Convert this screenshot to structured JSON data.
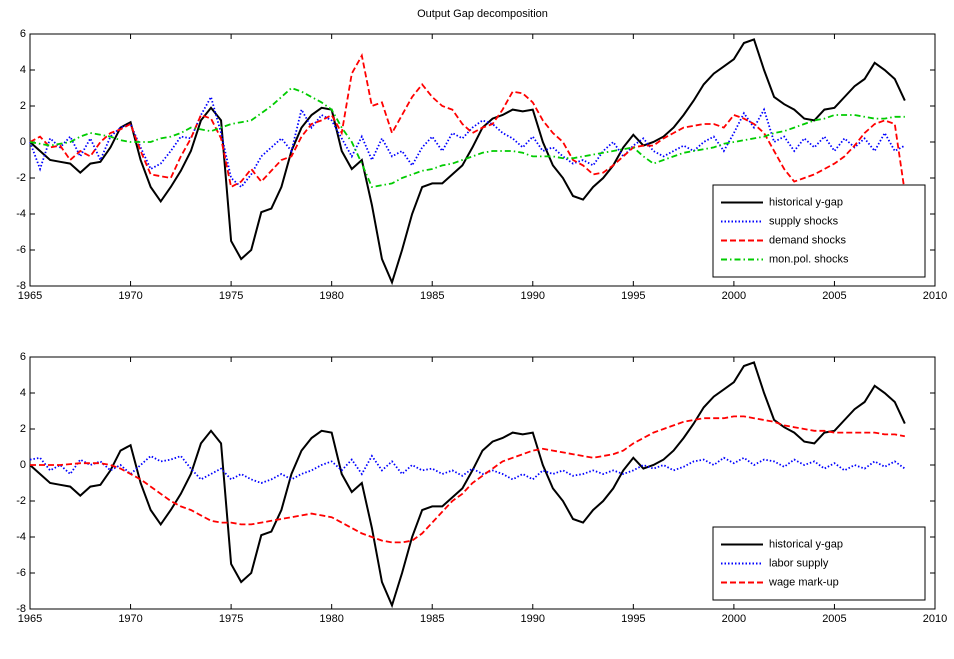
{
  "chart_data": [
    {
      "type": "line",
      "title": "Output Gap decomposition",
      "xlim": [
        1965,
        2010
      ],
      "ylim": [
        -8,
        6
      ],
      "xticks": [
        1965,
        1970,
        1975,
        1980,
        1985,
        1990,
        1995,
        2000,
        2005,
        2010
      ],
      "yticks": [
        -8,
        -6,
        -4,
        -2,
        0,
        2,
        4,
        6
      ],
      "legend": "lower right",
      "x": [
        1965,
        1965.5,
        1966,
        1966.5,
        1967,
        1967.5,
        1968,
        1968.5,
        1969,
        1969.5,
        1970,
        1970.5,
        1971,
        1971.5,
        1972,
        1972.5,
        1973,
        1973.5,
        1974,
        1974.5,
        1975,
        1975.5,
        1976,
        1976.5,
        1977,
        1977.5,
        1978,
        1978.5,
        1979,
        1979.5,
        1980,
        1980.5,
        1981,
        1981.5,
        1982,
        1982.5,
        1983,
        1983.5,
        1984,
        1984.5,
        1985,
        1985.5,
        1986,
        1986.5,
        1987,
        1987.5,
        1988,
        1988.5,
        1989,
        1989.5,
        1990,
        1990.5,
        1991,
        1991.5,
        1992,
        1992.5,
        1993,
        1993.5,
        1994,
        1994.5,
        1995,
        1995.5,
        1996,
        1996.5,
        1997,
        1997.5,
        1998,
        1998.5,
        1999,
        1999.5,
        2000,
        2000.5,
        2001,
        2001.5,
        2002,
        2002.5,
        2003,
        2003.5,
        2004,
        2004.5,
        2005,
        2005.5,
        2006,
        2006.5,
        2007,
        2007.5,
        2008,
        2008.5
      ],
      "series": [
        {
          "name": "historical y-gap",
          "color": "#000000",
          "linestyle": "solid",
          "values": [
            0,
            -0.5,
            -1.0,
            -1.1,
            -1.2,
            -1.7,
            -1.2,
            -1.1,
            -0.3,
            0.8,
            1.1,
            -1.0,
            -2.5,
            -3.3,
            -2.5,
            -1.6,
            -0.5,
            1.2,
            1.9,
            1.2,
            -5.5,
            -6.5,
            -6.0,
            -3.9,
            -3.7,
            -2.5,
            -0.5,
            0.8,
            1.5,
            1.9,
            1.8,
            -0.5,
            -1.5,
            -1.0,
            -3.5,
            -6.5,
            -7.8,
            -6.0,
            -4.0,
            -2.5,
            -2.3,
            -2.3,
            -1.8,
            -1.3,
            -0.3,
            0.8,
            1.3,
            1.5,
            1.8,
            1.7,
            1.8,
            0.0,
            -1.3,
            -2.0,
            -3.0,
            -3.2,
            -2.5,
            -2.0,
            -1.3,
            -0.3,
            0.4,
            -0.2,
            0.0,
            0.3,
            0.8,
            1.5,
            2.3,
            3.2,
            3.8,
            4.2,
            4.6,
            5.5,
            5.7,
            4.0,
            2.5,
            2.1,
            1.8,
            1.3,
            1.2,
            1.8,
            1.9,
            2.5,
            3.1,
            3.5,
            4.4,
            4.0,
            3.5,
            2.3
          ]
        },
        {
          "name": "supply shocks",
          "color": "#0000ff",
          "linestyle": "dotted",
          "values": [
            0,
            -1.5,
            0.2,
            -0.3,
            0.3,
            -0.8,
            0.2,
            -1.0,
            0.3,
            0.8,
            1.0,
            -0.3,
            -1.5,
            -1.2,
            -0.5,
            0.3,
            0.2,
            1.5,
            2.5,
            0.5,
            -2.0,
            -2.5,
            -1.8,
            -0.8,
            -0.3,
            0.2,
            -0.5,
            1.8,
            0.8,
            1.5,
            1.2,
            0.2,
            -0.8,
            0.3,
            -1.0,
            0.2,
            -0.8,
            -0.5,
            -1.3,
            -0.3,
            0.3,
            -0.5,
            0.5,
            0.2,
            0.8,
            1.2,
            1.0,
            0.5,
            0.2,
            -0.3,
            0.3,
            -0.5,
            -0.3,
            -0.8,
            -1.2,
            -1.0,
            -1.3,
            -0.5,
            0.0,
            -0.8,
            -0.2,
            0.2,
            -0.5,
            -0.8,
            -0.5,
            -0.2,
            -0.5,
            0.0,
            0.3,
            -0.5,
            0.5,
            1.6,
            0.8,
            1.8,
            0.0,
            0.3,
            -0.5,
            0.2,
            -0.3,
            0.3,
            -0.5,
            0.2,
            -0.3,
            0.2,
            -0.5,
            0.5,
            -0.5,
            -0.2
          ]
        },
        {
          "name": "demand shocks",
          "color": "#ff0000",
          "linestyle": "dashed",
          "values": [
            0,
            0.3,
            -0.3,
            -0.2,
            -1.0,
            -0.5,
            -0.8,
            0.0,
            0.5,
            0.7,
            1.0,
            -0.5,
            -1.8,
            -1.9,
            -2.0,
            -0.8,
            0.2,
            1.5,
            1.3,
            0.2,
            -2.5,
            -2.2,
            -1.5,
            -2.2,
            -1.6,
            -1.0,
            -0.8,
            0.3,
            1.0,
            1.2,
            1.5,
            0.5,
            3.8,
            4.8,
            2.0,
            2.2,
            0.5,
            1.5,
            2.5,
            3.2,
            2.5,
            2.0,
            1.8,
            1.0,
            0.5,
            0.8,
            1.0,
            1.8,
            2.8,
            2.7,
            2.2,
            1.2,
            0.5,
            0.0,
            -1.0,
            -1.3,
            -1.8,
            -1.7,
            -1.3,
            -0.8,
            -0.3,
            -0.2,
            -0.2,
            0.2,
            0.5,
            0.8,
            0.9,
            1.0,
            1.0,
            0.8,
            1.5,
            1.3,
            1.0,
            0.5,
            -0.5,
            -1.5,
            -2.2,
            -2.0,
            -1.8,
            -1.5,
            -1.2,
            -0.8,
            -0.2,
            0.5,
            1.0,
            1.2,
            1.0,
            -2.8
          ]
        },
        {
          "name": "mon.pol. shocks",
          "color": "#00cc00",
          "linestyle": "dashdot",
          "values": [
            0,
            -0.1,
            -0.2,
            -0.1,
            0,
            0.3,
            0.5,
            0.4,
            0.3,
            0.1,
            0,
            0,
            0,
            0.2,
            0.3,
            0.5,
            0.8,
            0.7,
            0.6,
            0.8,
            1.0,
            1.1,
            1.2,
            1.6,
            2.0,
            2.5,
            3.0,
            2.8,
            2.5,
            2.2,
            1.8,
            0.8,
            0,
            -1.2,
            -2.5,
            -2.4,
            -2.3,
            -2.0,
            -1.8,
            -1.6,
            -1.5,
            -1.3,
            -1.2,
            -1.0,
            -0.8,
            -0.6,
            -0.5,
            -0.5,
            -0.5,
            -0.6,
            -0.8,
            -0.8,
            -0.8,
            -0.9,
            -0.9,
            -0.8,
            -0.7,
            -0.6,
            -0.5,
            -0.4,
            -0.3,
            -0.8,
            -1.2,
            -1.0,
            -0.8,
            -0.6,
            -0.5,
            -0.4,
            -0.3,
            -0.1,
            0,
            0.1,
            0.2,
            0.3,
            0.5,
            0.6,
            0.8,
            1.0,
            1.2,
            1.3,
            1.5,
            1.5,
            1.5,
            1.4,
            1.3,
            1.3,
            1.4,
            1.4
          ]
        }
      ]
    },
    {
      "type": "line",
      "xlim": [
        1965,
        2010
      ],
      "ylim": [
        -8,
        6
      ],
      "xticks": [
        1965,
        1970,
        1975,
        1980,
        1985,
        1990,
        1995,
        2000,
        2005,
        2010
      ],
      "yticks": [
        -8,
        -6,
        -4,
        -2,
        0,
        2,
        4,
        6
      ],
      "legend": "lower right",
      "x": [
        1965,
        1965.5,
        1966,
        1966.5,
        1967,
        1967.5,
        1968,
        1968.5,
        1969,
        1969.5,
        1970,
        1970.5,
        1971,
        1971.5,
        1972,
        1972.5,
        1973,
        1973.5,
        1974,
        1974.5,
        1975,
        1975.5,
        1976,
        1976.5,
        1977,
        1977.5,
        1978,
        1978.5,
        1979,
        1979.5,
        1980,
        1980.5,
        1981,
        1981.5,
        1982,
        1982.5,
        1983,
        1983.5,
        1984,
        1984.5,
        1985,
        1985.5,
        1986,
        1986.5,
        1987,
        1987.5,
        1988,
        1988.5,
        1989,
        1989.5,
        1990,
        1990.5,
        1991,
        1991.5,
        1992,
        1992.5,
        1993,
        1993.5,
        1994,
        1994.5,
        1995,
        1995.5,
        1996,
        1996.5,
        1997,
        1997.5,
        1998,
        1998.5,
        1999,
        1999.5,
        2000,
        2000.5,
        2001,
        2001.5,
        2002,
        2002.5,
        2003,
        2003.5,
        2004,
        2004.5,
        2005,
        2005.5,
        2006,
        2006.5,
        2007,
        2007.5,
        2008,
        2008.5
      ],
      "series": [
        {
          "name": "historical y-gap",
          "color": "#000000",
          "linestyle": "solid",
          "values": [
            0,
            -0.5,
            -1.0,
            -1.1,
            -1.2,
            -1.7,
            -1.2,
            -1.1,
            -0.3,
            0.8,
            1.1,
            -1.0,
            -2.5,
            -3.3,
            -2.5,
            -1.6,
            -0.5,
            1.2,
            1.9,
            1.2,
            -5.5,
            -6.5,
            -6.0,
            -3.9,
            -3.7,
            -2.5,
            -0.5,
            0.8,
            1.5,
            1.9,
            1.8,
            -0.5,
            -1.5,
            -1.0,
            -3.5,
            -6.5,
            -7.8,
            -6.0,
            -4.0,
            -2.5,
            -2.3,
            -2.3,
            -1.8,
            -1.3,
            -0.3,
            0.8,
            1.3,
            1.5,
            1.8,
            1.7,
            1.8,
            0.0,
            -1.3,
            -2.0,
            -3.0,
            -3.2,
            -2.5,
            -2.0,
            -1.3,
            -0.3,
            0.4,
            -0.2,
            0.0,
            0.3,
            0.8,
            1.5,
            2.3,
            3.2,
            3.8,
            4.2,
            4.6,
            5.5,
            5.7,
            4.0,
            2.5,
            2.1,
            1.8,
            1.3,
            1.2,
            1.8,
            1.9,
            2.5,
            3.1,
            3.5,
            4.4,
            4.0,
            3.5,
            2.3
          ]
        },
        {
          "name": "labor supply",
          "color": "#0000ff",
          "linestyle": "dotted",
          "values": [
            0.3,
            0.4,
            -0.3,
            0,
            -0.5,
            0.3,
            0,
            0.2,
            -0.3,
            0,
            -0.5,
            0,
            0.5,
            0.2,
            0.3,
            0.5,
            -0.2,
            -0.8,
            -0.5,
            -0.2,
            -0.8,
            -0.5,
            -0.8,
            -1.0,
            -0.8,
            -0.5,
            -0.8,
            -0.5,
            -0.3,
            0.0,
            0.2,
            -0.3,
            0.3,
            -0.5,
            0.5,
            -0.3,
            0.2,
            -0.5,
            0,
            -0.3,
            -0.2,
            -0.5,
            -0.3,
            -0.6,
            -0.2,
            -0.5,
            -0.3,
            -0.5,
            -0.8,
            -0.5,
            -0.8,
            -0.3,
            -0.5,
            -0.3,
            -0.6,
            -0.5,
            -0.3,
            -0.5,
            -0.3,
            -0.5,
            -0.3,
            0,
            -0.2,
            0,
            -0.3,
            -0.1,
            0.2,
            0.3,
            0,
            0.4,
            0.1,
            0.4,
            0,
            0.3,
            0.2,
            -0.1,
            0.3,
            0,
            0.2,
            -0.2,
            0.1,
            -0.3,
            0,
            -0.2,
            0.2,
            -0.1,
            0.2,
            -0.2
          ]
        },
        {
          "name": "wage mark-up",
          "color": "#ff0000",
          "linestyle": "dashed",
          "values": [
            0,
            0,
            0,
            0,
            0.05,
            0.1,
            0.1,
            0.1,
            0,
            -0.2,
            -0.5,
            -0.8,
            -1.2,
            -1.6,
            -2.0,
            -2.3,
            -2.5,
            -2.8,
            -3.1,
            -3.2,
            -3.2,
            -3.3,
            -3.3,
            -3.2,
            -3.1,
            -3.0,
            -2.9,
            -2.8,
            -2.7,
            -2.8,
            -2.9,
            -3.2,
            -3.5,
            -3.8,
            -4.0,
            -4.2,
            -4.3,
            -4.3,
            -4.2,
            -3.8,
            -3.2,
            -2.6,
            -2.0,
            -1.6,
            -1.0,
            -0.6,
            -0.2,
            0.2,
            0.4,
            0.6,
            0.8,
            0.9,
            0.8,
            0.7,
            0.6,
            0.5,
            0.4,
            0.5,
            0.6,
            0.8,
            1.2,
            1.5,
            1.8,
            2.0,
            2.2,
            2.4,
            2.5,
            2.6,
            2.6,
            2.6,
            2.7,
            2.7,
            2.6,
            2.5,
            2.4,
            2.2,
            2.1,
            2.0,
            1.9,
            1.9,
            1.8,
            1.8,
            1.8,
            1.8,
            1.8,
            1.7,
            1.7,
            1.6
          ]
        }
      ]
    }
  ]
}
